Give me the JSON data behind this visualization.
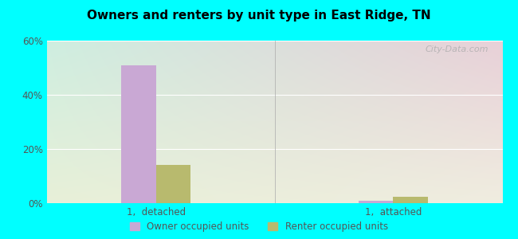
{
  "title": "Owners and renters by unit type in East Ridge, TN",
  "categories": [
    "1,  detached",
    "1,  attached"
  ],
  "owner_values": [
    51,
    0.8
  ],
  "renter_values": [
    14,
    2.5
  ],
  "owner_color": "#c9a8d4",
  "renter_color": "#b8ba6e",
  "ylim": [
    0,
    60
  ],
  "yticks": [
    0,
    20,
    40,
    60
  ],
  "ytick_labels": [
    "0%",
    "20%",
    "40%",
    "60%"
  ],
  "outer_bg": "#00ffff",
  "watermark": "City-Data.com",
  "legend_labels": [
    "Owner occupied units",
    "Renter occupied units"
  ],
  "bar_width": 0.38,
  "group_positions": [
    1.2,
    3.8
  ],
  "xlim": [
    0,
    5
  ]
}
